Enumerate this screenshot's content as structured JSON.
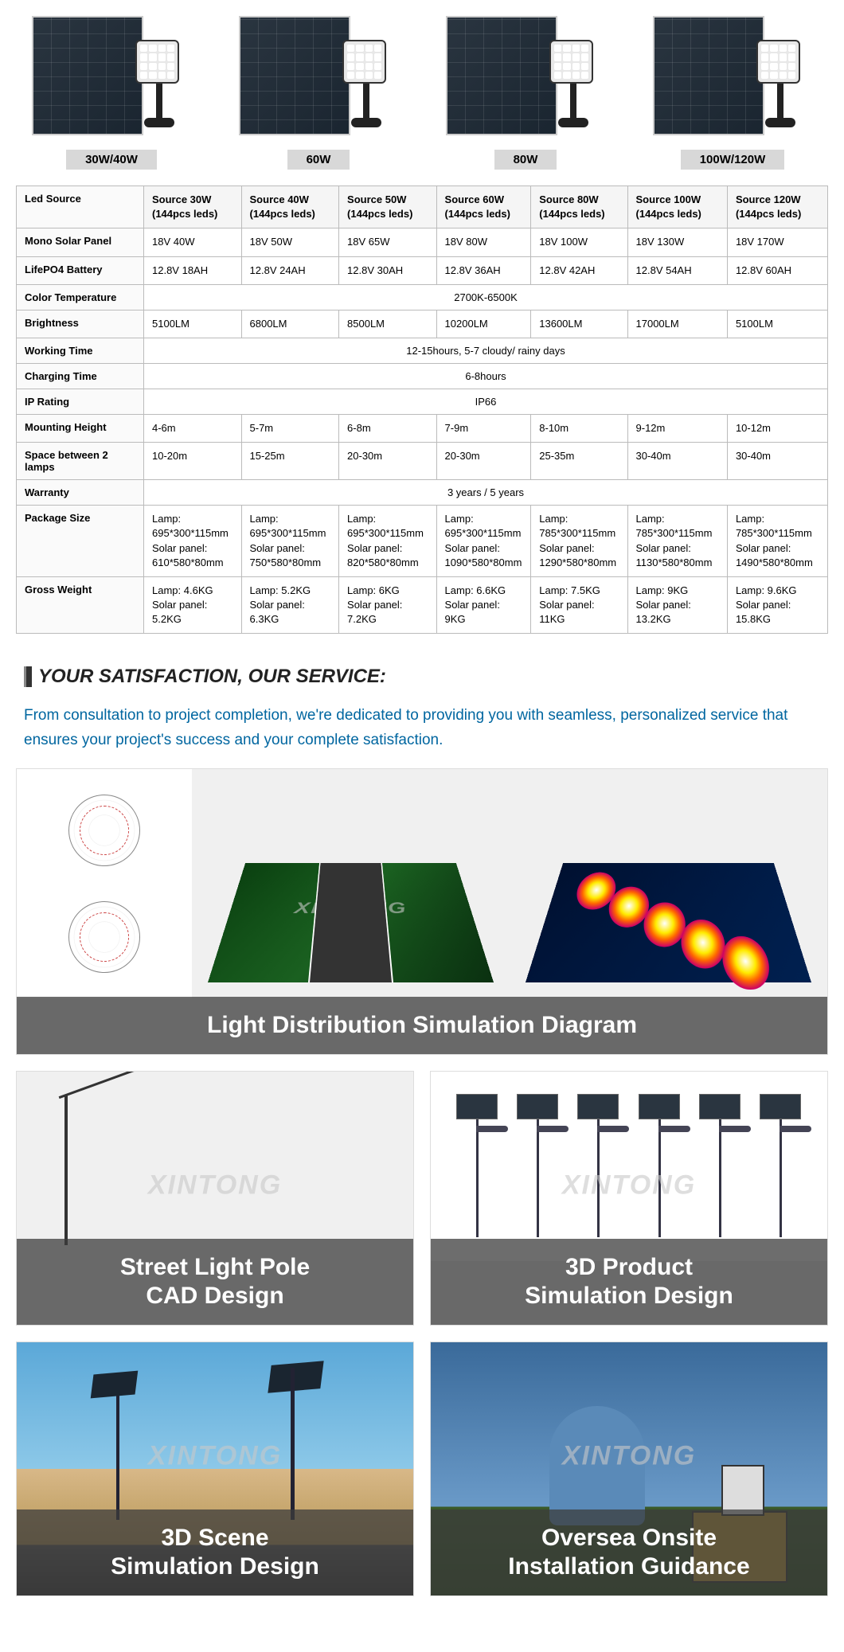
{
  "products": [
    {
      "label": "30W/40W"
    },
    {
      "label": "60W"
    },
    {
      "label": "80W"
    },
    {
      "label": "100W/120W"
    }
  ],
  "watermark": "XINTONG",
  "table": {
    "rows": [
      {
        "th": "Led Source",
        "cells": [
          "Source 30W\n(144pcs leds)",
          "Source 40W\n(144pcs leds)",
          "Source 50W\n(144pcs leds)",
          "Source 60W\n(144pcs leds)",
          "Source 80W\n(144pcs leds)",
          "Source 100W\n(144pcs leds)",
          "Source 120W\n(144pcs leds)"
        ],
        "head": true
      },
      {
        "th": "Mono Solar Panel",
        "cells": [
          "18V 40W",
          "18V 50W",
          "18V 65W",
          "18V 80W",
          "18V 100W",
          "18V 130W",
          "18V 170W"
        ]
      },
      {
        "th": "LifePO4 Battery",
        "cells": [
          "12.8V 18AH",
          "12.8V 24AH",
          "12.8V 30AH",
          "12.8V 36AH",
          "12.8V 42AH",
          "12.8V 54AH",
          "12.8V 60AH"
        ]
      },
      {
        "th": "Color Temperature",
        "span": "2700K-6500K"
      },
      {
        "th": "Brightness",
        "cells": [
          "5100LM",
          "6800LM",
          "8500LM",
          "10200LM",
          "13600LM",
          "17000LM",
          "5100LM"
        ]
      },
      {
        "th": "Working Time",
        "span": "12-15hours, 5-7 cloudy/ rainy days"
      },
      {
        "th": "Charging Time",
        "span": "6-8hours"
      },
      {
        "th": "IP Rating",
        "span": "IP66"
      },
      {
        "th": "Mounting Height",
        "cells": [
          "4-6m",
          "5-7m",
          "6-8m",
          "7-9m",
          "8-10m",
          "9-12m",
          "10-12m"
        ]
      },
      {
        "th": "Space between 2 lamps",
        "cells": [
          "10-20m",
          "15-25m",
          "20-30m",
          "20-30m",
          "25-35m",
          "30-40m",
          "30-40m"
        ]
      },
      {
        "th": "Warranty",
        "span": "3 years / 5 years"
      },
      {
        "th": "Package Size",
        "cells": [
          "Lamp:\n695*300*115mm\nSolar panel:\n610*580*80mm",
          "Lamp:\n695*300*115mm\nSolar panel:\n750*580*80mm",
          "Lamp:\n695*300*115mm\nSolar panel:\n820*580*80mm",
          "Lamp:\n695*300*115mm\nSolar panel:\n1090*580*80mm",
          "Lamp:\n785*300*115mm\nSolar panel:\n1290*580*80mm",
          "Lamp:\n785*300*115mm\nSolar panel:\n1130*580*80mm",
          "Lamp:\n785*300*115mm\nSolar panel:\n1490*580*80mm"
        ]
      },
      {
        "th": "Gross Weight",
        "cells": [
          "Lamp: 4.6KG\nSolar panel: 5.2KG",
          "Lamp: 5.2KG\nSolar panel: 6.3KG",
          "Lamp: 6KG\nSolar panel: 7.2KG",
          "Lamp: 6.6KG\nSolar panel: 9KG",
          "Lamp: 7.5KG\nSolar panel: 11KG",
          "Lamp: 9KG\nSolar panel: 13.2KG",
          "Lamp: 9.6KG\nSolar panel: 15.8KG"
        ]
      }
    ]
  },
  "section": {
    "title": "YOUR SATISFACTION, OUR SERVICE:",
    "desc": "From consultation to project completion, we're dedicated to providing you with seamless, personalized service that ensures your project's success and your complete satisfaction."
  },
  "cards": {
    "wide": "Light Distribution Simulation Diagram",
    "row1": [
      "Street Light Pole\nCAD Design",
      "3D Product\nSimulation Design"
    ],
    "row2": [
      "3D Scene\nSimulation Design",
      "Oversea Onsite\nInstallation Guidance"
    ]
  }
}
